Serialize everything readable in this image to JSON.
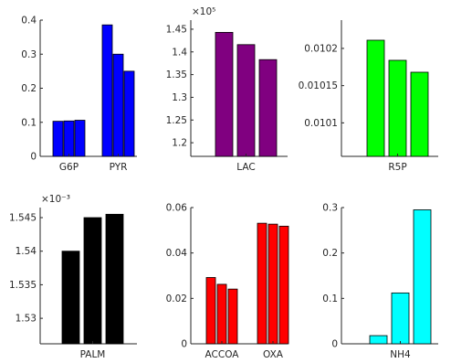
{
  "chart_data": [
    {
      "type": "bar",
      "ylim": [
        0,
        0.4
      ],
      "yticks": [
        "0",
        "0.1",
        "0.2",
        "0.3",
        "0.4"
      ],
      "exponent": "",
      "color": "#0000ff",
      "groups": [
        {
          "label": "G6P",
          "values": [
            0.103,
            0.104,
            0.106
          ]
        },
        {
          "label": "PYR",
          "values": [
            0.386,
            0.3,
            0.25
          ]
        }
      ]
    },
    {
      "type": "bar",
      "ylim": [
        1.17,
        1.47
      ],
      "yticks": [
        "1.2",
        "1.25",
        "1.3",
        "1.35",
        "1.4",
        "1.45"
      ],
      "exponent": "×10⁵",
      "color": "#800080",
      "groups": [
        {
          "label": "LAC",
          "values": [
            1.443,
            1.416,
            1.383
          ]
        }
      ]
    },
    {
      "type": "bar",
      "ylim": [
        0.010055,
        0.010238
      ],
      "yticks": [
        "0.0101",
        "0.01015",
        "0.0102"
      ],
      "exponent": "",
      "color": "#00ff00",
      "groups": [
        {
          "label": "R5P",
          "values": [
            0.010211,
            0.010184,
            0.010168
          ]
        }
      ]
    },
    {
      "type": "bar",
      "ylim": [
        1.5262,
        1.5465
      ],
      "yticks": [
        "1.53",
        "1.535",
        "1.54",
        "1.545"
      ],
      "exponent": "×10⁻³",
      "color": "#000000",
      "groups": [
        {
          "label": "PALM",
          "values": [
            1.54,
            1.545,
            1.5455
          ]
        }
      ]
    },
    {
      "type": "bar",
      "ylim": [
        0,
        0.06
      ],
      "yticks": [
        "0",
        "0.02",
        "0.04",
        "0.06"
      ],
      "exponent": "",
      "color": "#ff0000",
      "groups": [
        {
          "label": "ACCOA",
          "values": [
            0.0292,
            0.0262,
            0.0241
          ]
        },
        {
          "label": "OXA",
          "values": [
            0.0531,
            0.0527,
            0.0518
          ]
        }
      ]
    },
    {
      "type": "bar",
      "ylim": [
        0,
        0.3
      ],
      "yticks": [
        "0",
        "0.1",
        "0.2",
        "0.3"
      ],
      "exponent": "",
      "color": "#00ffff",
      "groups": [
        {
          "label": "NH4",
          "values": [
            0.018,
            0.112,
            0.295
          ]
        }
      ]
    }
  ]
}
